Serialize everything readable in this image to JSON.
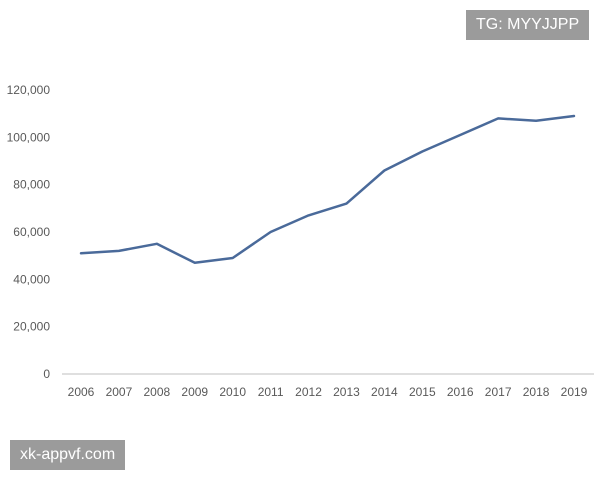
{
  "watermarks": {
    "top_right": "TG: MYYJJPP",
    "bottom_left": "xk-appvf.com"
  },
  "chart_data": {
    "type": "line",
    "title": "",
    "xlabel": "",
    "ylabel": "",
    "x": [
      "2006",
      "2007",
      "2008",
      "2009",
      "2010",
      "2011",
      "2012",
      "2013",
      "2014",
      "2015",
      "2016",
      "2017",
      "2018",
      "2019"
    ],
    "series": [
      {
        "values": [
          51000,
          52000,
          55000,
          47000,
          49000,
          60000,
          67000,
          72000,
          86000,
          94000,
          101000,
          108000,
          107000,
          109000
        ]
      }
    ],
    "ylim": [
      0,
      120000
    ],
    "y_ticks": [
      0,
      20000,
      40000,
      60000,
      80000,
      100000,
      120000
    ],
    "y_tick_labels": [
      "0",
      "20,000",
      "40,000",
      "60,000",
      "80,000",
      "100,000",
      "120,000"
    ],
    "grid": false,
    "line_color": "#4a6a9a",
    "axis_color": "#bfbfbf"
  }
}
